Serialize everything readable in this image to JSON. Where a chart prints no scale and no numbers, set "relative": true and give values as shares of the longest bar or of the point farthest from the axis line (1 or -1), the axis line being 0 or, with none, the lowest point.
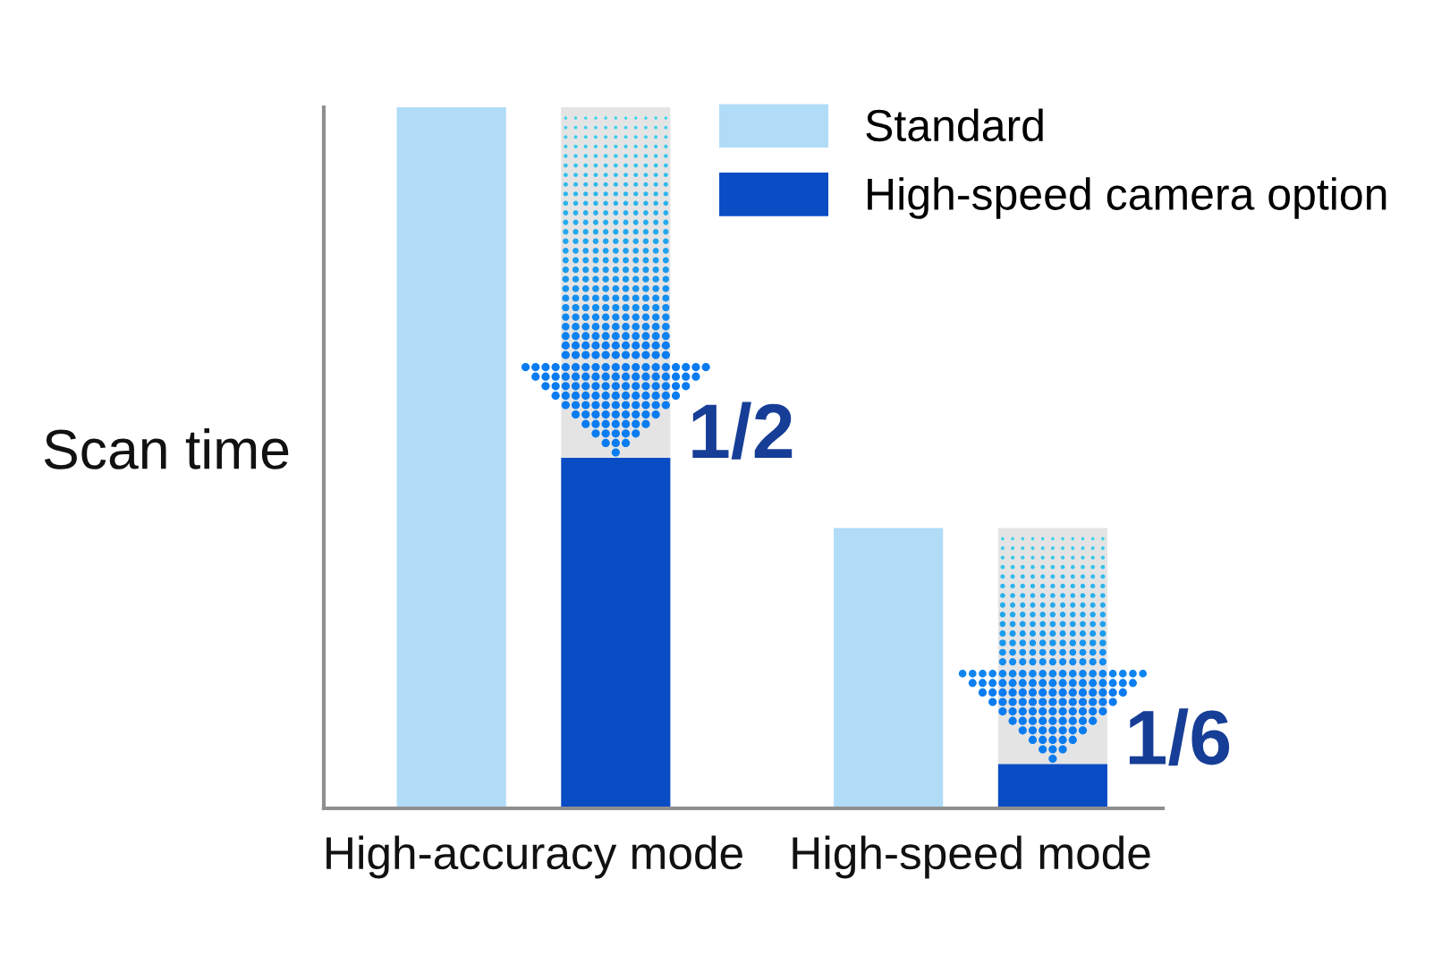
{
  "chart_data": {
    "type": "bar",
    "relative": true,
    "ylabel": "Scan time",
    "categories": [
      "High-accuracy mode",
      "High-speed mode"
    ],
    "series": [
      {
        "name": "Standard",
        "color": "#b0dcf7",
        "values": [
          1,
          0.4
        ]
      },
      {
        "name": "High-speed camera option",
        "color": "#0a4cc4",
        "values": [
          0.5,
          0.063
        ]
      }
    ],
    "legend": "top right",
    "annotations": [
      "1/2",
      "1/6"
    ]
  }
}
